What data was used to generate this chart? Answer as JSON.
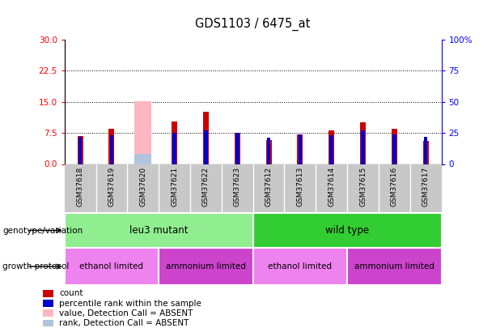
{
  "title": "GDS1103 / 6475_at",
  "samples": [
    "GSM37618",
    "GSM37619",
    "GSM37620",
    "GSM37621",
    "GSM37622",
    "GSM37623",
    "GSM37612",
    "GSM37613",
    "GSM37614",
    "GSM37615",
    "GSM37616",
    "GSM37617"
  ],
  "count_values": [
    6.8,
    8.5,
    0.3,
    10.2,
    12.5,
    7.5,
    5.8,
    7.2,
    8.0,
    10.0,
    8.5,
    5.5
  ],
  "rank_values": [
    22,
    23,
    0,
    25,
    27,
    25,
    21,
    24,
    23,
    27,
    24,
    22
  ],
  "absent_count": [
    0,
    0,
    15.2,
    0,
    0,
    0,
    0,
    0,
    0,
    0,
    0,
    0
  ],
  "absent_rank": [
    0,
    0,
    8,
    0,
    0,
    0,
    0,
    0,
    0,
    0,
    0,
    0
  ],
  "is_absent": [
    false,
    false,
    true,
    false,
    false,
    false,
    false,
    false,
    false,
    false,
    false,
    false
  ],
  "ylim_left": [
    0,
    30
  ],
  "ylim_right": [
    0,
    100
  ],
  "yticks_left": [
    0,
    7.5,
    15,
    22.5,
    30
  ],
  "yticks_right": [
    0,
    25,
    50,
    75,
    100
  ],
  "ytick_right_labels": [
    "0",
    "25",
    "50",
    "75",
    "100%"
  ],
  "count_color": "#cc0000",
  "rank_color": "#0000cc",
  "absent_count_color": "#ffb6c1",
  "absent_rank_color": "#b0c4de",
  "genotype_colors": {
    "leu3 mutant": "#90ee90",
    "wild type": "#32cd32"
  },
  "protocol_light": "#ee82ee",
  "protocol_dark": "#cc44cc",
  "label_bg": "#c8c8c8",
  "genotype_labels": [
    {
      "label": "leu3 mutant",
      "start": 0,
      "end": 5
    },
    {
      "label": "wild type",
      "start": 6,
      "end": 11
    }
  ],
  "protocol_labels": [
    {
      "label": "ethanol limited",
      "start": 0,
      "end": 2,
      "dark": false
    },
    {
      "label": "ammonium limited",
      "start": 3,
      "end": 5,
      "dark": true
    },
    {
      "label": "ethanol limited",
      "start": 6,
      "end": 8,
      "dark": false
    },
    {
      "label": "ammonium limited",
      "start": 9,
      "end": 11,
      "dark": true
    }
  ],
  "legend_items": [
    {
      "label": "count",
      "color": "#cc0000"
    },
    {
      "label": "percentile rank within the sample",
      "color": "#0000cc"
    },
    {
      "label": "value, Detection Call = ABSENT",
      "color": "#ffb6c1"
    },
    {
      "label": "rank, Detection Call = ABSENT",
      "color": "#b0c4de"
    }
  ]
}
